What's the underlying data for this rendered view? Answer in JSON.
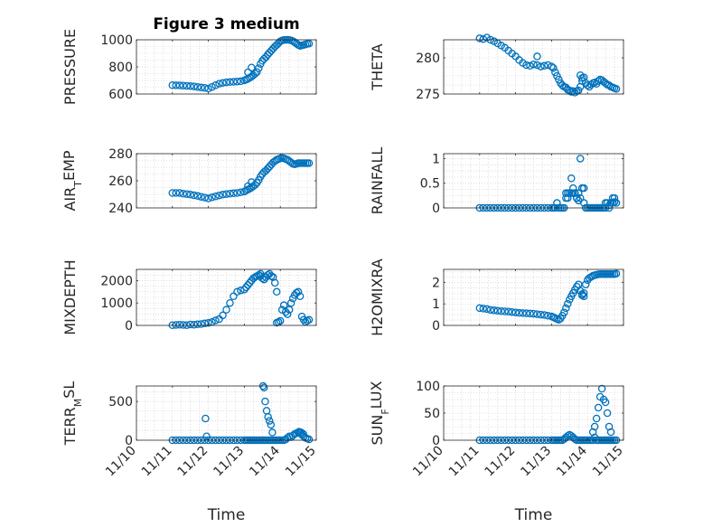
{
  "chart_data": [
    {
      "type": "scatter",
      "id": "pressure",
      "title": "Figure 3 medium",
      "ylabel": "PRESSURE",
      "ylabel_sub": "",
      "ylabel_after": "",
      "ylim": [
        600,
        1000
      ],
      "yticks": [
        600,
        800,
        1000
      ],
      "ytick_labels": [
        "600",
        "800",
        "1000"
      ],
      "xlim": [
        0,
        5
      ],
      "xticks": [
        0,
        1,
        2,
        3,
        4,
        5
      ],
      "xtick_labels": [
        "11/10",
        "11/11",
        "11/12",
        "11/13",
        "11/14",
        "11/15"
      ],
      "show_x_labels": false,
      "xlabel": "",
      "x": [
        1,
        1.1,
        1.2,
        1.3,
        1.4,
        1.5,
        1.6,
        1.7,
        1.8,
        1.9,
        2,
        2.1,
        2.2,
        2.3,
        2.4,
        2.5,
        2.6,
        2.7,
        2.8,
        2.9,
        3,
        3.05,
        3.1,
        3.15,
        3.2,
        3.25,
        3.3,
        3.35,
        3.4,
        3.45,
        3.5,
        3.55,
        3.6,
        3.65,
        3.7,
        3.75,
        3.8,
        3.85,
        3.9,
        3.95,
        4,
        4.05,
        4.1,
        4.15,
        4.2,
        4.25,
        4.3,
        4.35,
        4.4,
        4.45,
        4.5,
        4.55,
        4.6,
        4.65,
        4.7,
        4.75,
        4.8,
        3.1,
        3.2
      ],
      "y": [
        665,
        664,
        663,
        662,
        660,
        658,
        656,
        652,
        648,
        645,
        640,
        652,
        665,
        676,
        682,
        686,
        688,
        690,
        692,
        694,
        700,
        706,
        712,
        720,
        728,
        738,
        750,
        762,
        790,
        822,
        845,
        860,
        872,
        890,
        905,
        920,
        935,
        950,
        962,
        975,
        988,
        995,
        998,
        999,
        1000,
        998,
        995,
        990,
        982,
        972,
        962,
        955,
        958,
        962,
        966,
        970,
        972,
        760,
        795
      ]
    },
    {
      "type": "scatter",
      "id": "theta",
      "title": "",
      "ylabel": "THETA",
      "ylabel_sub": "",
      "ylabel_after": "",
      "ylim": [
        275,
        282.5
      ],
      "yticks": [
        275,
        280
      ],
      "ytick_labels": [
        "275",
        "280"
      ],
      "xlim": [
        0,
        5
      ],
      "xticks": [
        0,
        1,
        2,
        3,
        4,
        5
      ],
      "xtick_labels": [
        "11/10",
        "11/11",
        "11/12",
        "11/13",
        "11/14",
        "11/15"
      ],
      "show_x_labels": false,
      "xlabel": "",
      "x": [
        1,
        1.1,
        1.2,
        1.3,
        1.4,
        1.5,
        1.6,
        1.7,
        1.8,
        1.9,
        2,
        2.1,
        2.2,
        2.3,
        2.4,
        2.5,
        2.6,
        2.7,
        2.8,
        2.9,
        3,
        3.05,
        3.1,
        3.15,
        3.2,
        3.25,
        3.3,
        3.35,
        3.4,
        3.45,
        3.5,
        3.55,
        3.6,
        3.65,
        3.7,
        3.75,
        3.8,
        3.85,
        3.9,
        3.95,
        4,
        4.05,
        4.1,
        4.15,
        4.2,
        4.25,
        4.3,
        4.35,
        4.4,
        4.45,
        4.5,
        4.55,
        4.6,
        4.65,
        4.7,
        4.75,
        4.8,
        2.6,
        3.8,
        3.85
      ],
      "y": [
        282.7,
        282.6,
        282.8,
        282.5,
        282.3,
        282.0,
        281.7,
        281.4,
        281.0,
        280.6,
        280.2,
        279.7,
        279.3,
        279.0,
        278.9,
        279.1,
        279.0,
        278.8,
        278.9,
        279.0,
        278.8,
        278.6,
        278.0,
        277.5,
        277.0,
        276.5,
        276.2,
        276.0,
        275.9,
        275.6,
        275.5,
        275.3,
        275.4,
        275.2,
        275.4,
        275.5,
        276.0,
        276.8,
        277.3,
        276.5,
        276.2,
        276.0,
        276.3,
        276.5,
        276.6,
        276.4,
        276.8,
        277.0,
        276.9,
        276.7,
        276.5,
        276.3,
        276.2,
        276.0,
        275.9,
        275.8,
        275.7,
        280.2,
        277.6,
        277.2
      ]
    },
    {
      "type": "scatter",
      "id": "air-temp",
      "title": "",
      "ylabel": "AIR",
      "ylabel_sub": "T",
      "ylabel_after": "EMP",
      "ylim": [
        240,
        280
      ],
      "yticks": [
        240,
        260,
        280
      ],
      "ytick_labels": [
        "240",
        "260",
        "280"
      ],
      "xlim": [
        0,
        5
      ],
      "xticks": [
        0,
        1,
        2,
        3,
        4,
        5
      ],
      "xtick_labels": [
        "11/10",
        "11/11",
        "11/12",
        "11/13",
        "11/14",
        "11/15"
      ],
      "show_x_labels": false,
      "xlabel": "",
      "x": [
        1,
        1.1,
        1.2,
        1.3,
        1.4,
        1.5,
        1.6,
        1.7,
        1.8,
        1.9,
        2,
        2.1,
        2.2,
        2.3,
        2.4,
        2.5,
        2.6,
        2.7,
        2.8,
        2.9,
        3,
        3.05,
        3.1,
        3.15,
        3.2,
        3.25,
        3.3,
        3.35,
        3.4,
        3.45,
        3.5,
        3.55,
        3.6,
        3.65,
        3.7,
        3.75,
        3.8,
        3.85,
        3.9,
        3.95,
        4,
        4.05,
        4.1,
        4.15,
        4.2,
        4.25,
        4.3,
        4.35,
        4.4,
        4.45,
        4.5,
        4.55,
        4.6,
        4.65,
        4.7,
        4.75,
        4.8,
        3.1,
        3.2
      ],
      "y": [
        251,
        251,
        251,
        250.5,
        250.2,
        249.8,
        249.3,
        248.8,
        248.2,
        247.6,
        247,
        247.8,
        248.5,
        249.2,
        249.8,
        250.2,
        250.5,
        250.8,
        251,
        251.5,
        252,
        252.8,
        253.5,
        254.2,
        255,
        256,
        257,
        258.5,
        260.5,
        263,
        265,
        266.5,
        267.5,
        269,
        270.5,
        272,
        273.5,
        274.5,
        275.5,
        276,
        276.5,
        276.8,
        276.5,
        276,
        275.5,
        274.5,
        273.5,
        272.5,
        272.2,
        272.5,
        273,
        273,
        273,
        273,
        273,
        273,
        273,
        256,
        259
      ]
    },
    {
      "type": "scatter",
      "id": "rainfall",
      "title": "",
      "ylabel": "RAINFALL",
      "ylabel_sub": "",
      "ylabel_after": "",
      "ylim": [
        0,
        1.1
      ],
      "yticks": [
        0,
        0.5,
        1
      ],
      "ytick_labels": [
        "0",
        "0.5",
        "1"
      ],
      "xlim": [
        0,
        5
      ],
      "xticks": [
        0,
        1,
        2,
        3,
        4,
        5
      ],
      "xtick_labels": [
        "11/10",
        "11/11",
        "11/12",
        "11/13",
        "11/14",
        "11/15"
      ],
      "show_x_labels": false,
      "xlabel": "",
      "x": [
        1,
        1.1,
        1.2,
        1.3,
        1.4,
        1.5,
        1.6,
        1.7,
        1.8,
        1.9,
        2,
        2.1,
        2.2,
        2.3,
        2.4,
        2.5,
        2.6,
        2.7,
        2.8,
        2.9,
        3,
        3.05,
        3.1,
        3.15,
        3.2,
        3.25,
        3.3,
        3.35,
        3.4,
        3.45,
        3.5,
        3.55,
        3.6,
        3.65,
        3.7,
        3.75,
        3.8,
        3.85,
        3.9,
        3.95,
        4,
        4.05,
        4.1,
        4.15,
        4.2,
        4.25,
        4.3,
        4.35,
        4.4,
        4.45,
        4.5,
        4.55,
        4.6,
        4.65,
        4.7,
        4.75,
        4.8,
        3.4,
        3.45,
        3.55,
        3.6,
        3.65,
        3.7,
        3.75,
        3.8,
        3.85,
        3.9,
        4.5,
        4.6,
        4.7,
        4.75
      ],
      "y": [
        0,
        0,
        0,
        0,
        0,
        0,
        0,
        0,
        0,
        0,
        0,
        0,
        0,
        0,
        0,
        0,
        0,
        0,
        0,
        0,
        0,
        0,
        0,
        0.1,
        0,
        0,
        0,
        0,
        0.3,
        0.3,
        0.3,
        0.3,
        0.3,
        0.3,
        0.2,
        0.3,
        0.2,
        0.4,
        0.1,
        0,
        0,
        0,
        0,
        0,
        0,
        0,
        0,
        0,
        0,
        0,
        0,
        0.1,
        0,
        0.1,
        0.1,
        0.2,
        0.1,
        0.2,
        0.2,
        0.6,
        0.4,
        0.3,
        0.2,
        0.15,
        1.0,
        0.4,
        0.4,
        0.1,
        0.05,
        0.2,
        0.12
      ]
    },
    {
      "type": "scatter",
      "id": "mixdepth",
      "title": "",
      "ylabel": "MIXDEPTH",
      "ylabel_sub": "",
      "ylabel_after": "",
      "ylim": [
        0,
        2500
      ],
      "yticks": [
        0,
        1000,
        2000
      ],
      "ytick_labels": [
        "0",
        "1000",
        "2000"
      ],
      "xlim": [
        0,
        5
      ],
      "xticks": [
        0,
        1,
        2,
        3,
        4,
        5
      ],
      "xtick_labels": [
        "11/10",
        "11/11",
        "11/12",
        "11/13",
        "11/14",
        "11/15"
      ],
      "show_x_labels": false,
      "xlabel": "",
      "x": [
        1,
        1.1,
        1.2,
        1.3,
        1.4,
        1.5,
        1.6,
        1.7,
        1.8,
        1.9,
        2,
        2.1,
        2.2,
        2.3,
        2.4,
        2.5,
        2.6,
        2.7,
        2.8,
        2.9,
        3,
        3.05,
        3.1,
        3.15,
        3.2,
        3.25,
        3.3,
        3.35,
        3.4,
        3.45,
        3.5,
        3.55,
        3.6,
        3.65,
        3.7,
        3.75,
        3.8,
        3.85,
        3.9,
        3.95,
        4,
        4.05,
        4.1,
        4.15,
        4.2,
        4.25,
        4.3,
        4.35,
        4.4,
        4.45,
        4.5,
        4.55,
        4.6,
        4.65,
        4.7,
        4.75,
        4.8,
        3.45,
        3.55,
        3.9
      ],
      "y": [
        10,
        20,
        30,
        20,
        10,
        40,
        30,
        50,
        60,
        90,
        110,
        150,
        220,
        280,
        450,
        700,
        1000,
        1300,
        1500,
        1560,
        1600,
        1700,
        1800,
        1900,
        2000,
        2100,
        2150,
        2200,
        2250,
        2200,
        2100,
        2050,
        2150,
        2250,
        2300,
        2200,
        2150,
        1900,
        1500,
        150,
        200,
        700,
        900,
        600,
        500,
        700,
        1000,
        1200,
        1350,
        1450,
        1500,
        1300,
        400,
        250,
        150,
        200,
        250,
        2300,
        2050,
        120
      ]
    },
    {
      "type": "scatter",
      "id": "h2omixra",
      "title": "",
      "ylabel": "H2OMIXRA",
      "ylabel_sub": "",
      "ylabel_after": "",
      "ylim": [
        0,
        2.6
      ],
      "yticks": [
        0,
        1,
        2
      ],
      "ytick_labels": [
        "0",
        "1",
        "2"
      ],
      "xlim": [
        0,
        5
      ],
      "xticks": [
        0,
        1,
        2,
        3,
        4,
        5
      ],
      "xtick_labels": [
        "11/10",
        "11/11",
        "11/12",
        "11/13",
        "11/14",
        "11/15"
      ],
      "show_x_labels": false,
      "xlabel": "",
      "x": [
        1,
        1.1,
        1.2,
        1.3,
        1.4,
        1.5,
        1.6,
        1.7,
        1.8,
        1.9,
        2,
        2.1,
        2.2,
        2.3,
        2.4,
        2.5,
        2.6,
        2.7,
        2.8,
        2.9,
        3,
        3.05,
        3.1,
        3.15,
        3.2,
        3.25,
        3.3,
        3.35,
        3.4,
        3.45,
        3.5,
        3.55,
        3.6,
        3.65,
        3.7,
        3.75,
        3.8,
        3.85,
        3.9,
        3.95,
        4,
        4.05,
        4.1,
        4.15,
        4.2,
        4.25,
        4.3,
        4.35,
        4.4,
        4.45,
        4.5,
        4.55,
        4.6,
        4.65,
        4.7,
        4.75,
        4.8,
        3.85,
        3.9
      ],
      "y": [
        0.8,
        0.78,
        0.76,
        0.72,
        0.7,
        0.68,
        0.66,
        0.65,
        0.64,
        0.62,
        0.6,
        0.58,
        0.57,
        0.56,
        0.55,
        0.54,
        0.52,
        0.5,
        0.48,
        0.45,
        0.42,
        0.38,
        0.34,
        0.3,
        0.26,
        0.32,
        0.45,
        0.6,
        0.8,
        1.0,
        1.2,
        1.35,
        1.5,
        1.65,
        1.8,
        1.9,
        1.6,
        1.4,
        1.35,
        1.9,
        2.1,
        2.2,
        2.25,
        2.3,
        2.33,
        2.35,
        2.37,
        2.38,
        2.38,
        2.38,
        2.38,
        2.38,
        2.38,
        2.38,
        2.38,
        2.38,
        2.4,
        1.45,
        1.5
      ]
    },
    {
      "type": "scatter",
      "id": "terr-msl",
      "title": "",
      "ylabel": "TERR",
      "ylabel_sub": "M",
      "ylabel_after": "SL",
      "ylim": [
        0,
        700
      ],
      "yticks": [
        0,
        500
      ],
      "ytick_labels": [
        "0",
        "500"
      ],
      "xlim": [
        0,
        5
      ],
      "xticks": [
        0,
        1,
        2,
        3,
        4,
        5
      ],
      "xtick_labels": [
        "11/10",
        "11/11",
        "11/12",
        "11/13",
        "11/14",
        "11/15"
      ],
      "show_x_labels": true,
      "xlabel": "Time",
      "x": [
        1,
        1.1,
        1.2,
        1.3,
        1.4,
        1.5,
        1.6,
        1.7,
        1.8,
        1.9,
        2,
        2.1,
        2.2,
        2.3,
        2.4,
        2.5,
        2.6,
        2.7,
        2.8,
        2.9,
        3,
        3.05,
        3.1,
        3.15,
        3.2,
        3.25,
        3.3,
        3.35,
        3.4,
        3.45,
        3.5,
        3.55,
        3.6,
        3.65,
        3.7,
        3.75,
        3.8,
        3.85,
        3.9,
        3.95,
        4,
        4.05,
        4.1,
        4.15,
        4.2,
        4.25,
        4.3,
        4.35,
        4.4,
        4.45,
        4.5,
        4.55,
        4.6,
        4.65,
        4.7,
        4.75,
        4.8,
        1.92,
        1.95,
        3.52,
        3.55,
        3.58,
        3.62,
        3.66,
        3.7,
        3.74,
        3.78,
        4.52,
        4.58,
        4.64
      ],
      "y": [
        0,
        0,
        0,
        0,
        0,
        0,
        0,
        0,
        0,
        0,
        0,
        0,
        0,
        0,
        0,
        0,
        0,
        0,
        0,
        0,
        0,
        0,
        0,
        0,
        0,
        0,
        0,
        0,
        0,
        0,
        0,
        0,
        0,
        0,
        0,
        0,
        0,
        0,
        0,
        0,
        0,
        0,
        0,
        10,
        30,
        50,
        40,
        60,
        80,
        90,
        100,
        90,
        70,
        50,
        30,
        20,
        10,
        280,
        50,
        700,
        680,
        500,
        380,
        300,
        250,
        200,
        100,
        110,
        100,
        80
      ]
    },
    {
      "type": "scatter",
      "id": "sun-flux",
      "title": "",
      "ylabel": "SUN",
      "ylabel_sub": "F",
      "ylabel_after": "LUX",
      "ylim": [
        0,
        100
      ],
      "yticks": [
        0,
        50,
        100
      ],
      "ytick_labels": [
        "0",
        "50",
        "100"
      ],
      "xlim": [
        0,
        5
      ],
      "xticks": [
        0,
        1,
        2,
        3,
        4,
        5
      ],
      "xtick_labels": [
        "11/10",
        "11/11",
        "11/12",
        "11/13",
        "11/14",
        "11/15"
      ],
      "show_x_labels": true,
      "xlabel": "Time",
      "x": [
        1,
        1.1,
        1.2,
        1.3,
        1.4,
        1.5,
        1.6,
        1.7,
        1.8,
        1.9,
        2,
        2.1,
        2.2,
        2.3,
        2.4,
        2.5,
        2.6,
        2.7,
        2.8,
        2.9,
        3,
        3.05,
        3.1,
        3.15,
        3.2,
        3.25,
        3.3,
        3.35,
        3.4,
        3.45,
        3.5,
        3.55,
        3.6,
        3.65,
        3.7,
        3.75,
        3.8,
        3.85,
        3.9,
        3.95,
        4,
        4.05,
        4.1,
        4.15,
        4.2,
        4.25,
        4.3,
        4.35,
        4.4,
        4.45,
        4.5,
        4.55,
        4.6,
        4.65,
        4.7,
        4.75,
        4.8,
        4.15,
        4.2,
        4.25,
        4.3,
        4.35,
        4.4,
        4.45,
        4.5,
        4.55,
        4.6,
        4.65
      ],
      "y": [
        0,
        0,
        0,
        0,
        0,
        0,
        0,
        0,
        0,
        0,
        0,
        0,
        0,
        0,
        0,
        0,
        0,
        0,
        0,
        0,
        0,
        0,
        0,
        0,
        0,
        0,
        0,
        2,
        5,
        8,
        10,
        8,
        5,
        2,
        0,
        0,
        0,
        0,
        0,
        0,
        0,
        0,
        0,
        0,
        5,
        0,
        0,
        0,
        0,
        0,
        0,
        0,
        0,
        0,
        0,
        0,
        0,
        15,
        25,
        40,
        60,
        80,
        95,
        75,
        70,
        50,
        25,
        15
      ]
    }
  ]
}
